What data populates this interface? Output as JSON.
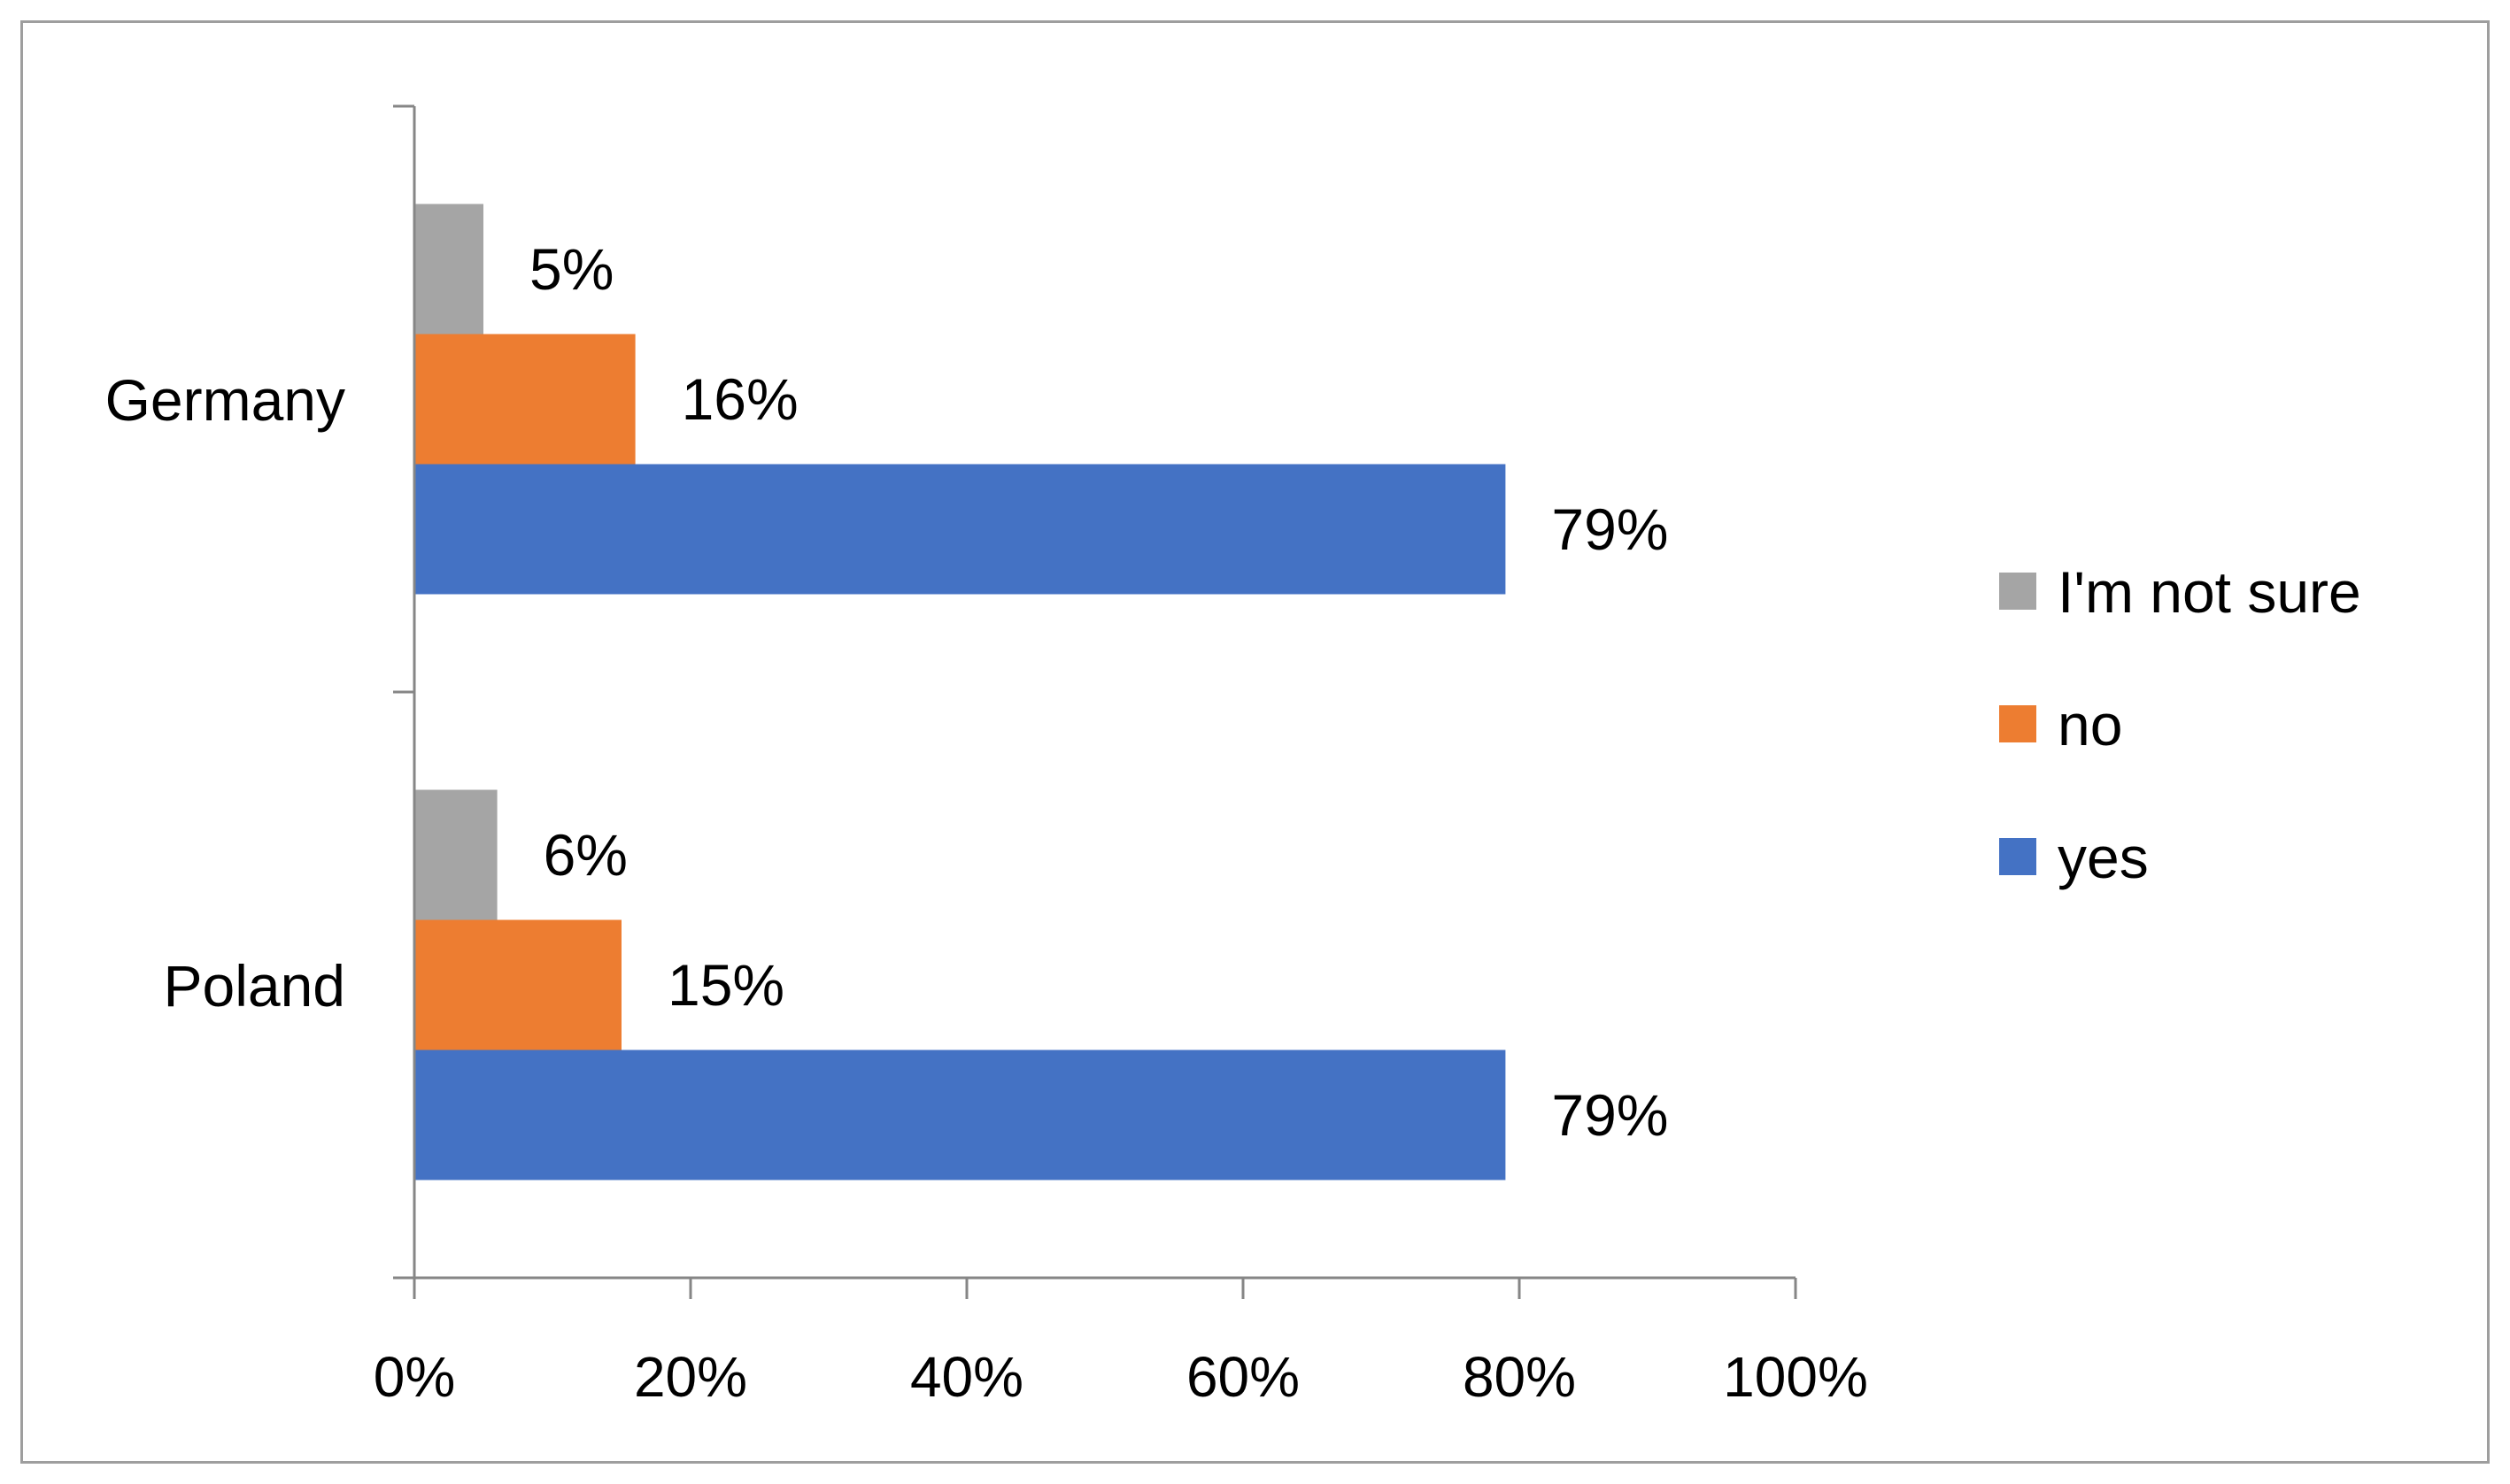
{
  "chart_data": {
    "type": "bar",
    "orientation": "horizontal",
    "categories": [
      "Germany",
      "Poland"
    ],
    "series": [
      {
        "name": "I'm not sure",
        "color": "#a5a5a5",
        "values": [
          5,
          6
        ]
      },
      {
        "name": "no",
        "color": "#ed7d31",
        "values": [
          16,
          15
        ]
      },
      {
        "name": "yes",
        "color": "#4472c4",
        "values": [
          79,
          79
        ]
      }
    ],
    "data_labels": [
      [
        "5%",
        "6%"
      ],
      [
        "16%",
        "15%"
      ],
      [
        "79%",
        "79%"
      ]
    ],
    "x_ticks": [
      "0%",
      "20%",
      "40%",
      "60%",
      "80%",
      "100%"
    ],
    "xlim": [
      0,
      100
    ],
    "legend_position": "right",
    "grid": false,
    "title": "",
    "xlabel": "",
    "ylabel": ""
  }
}
